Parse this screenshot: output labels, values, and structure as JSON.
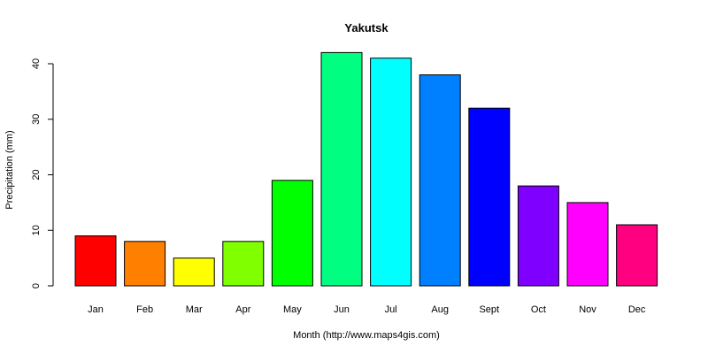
{
  "chart_data": {
    "type": "bar",
    "title": "Yakutsk",
    "xlabel": "Month (http://www.maps4gis.com)",
    "ylabel": "Precipitation (mm)",
    "categories": [
      "Jan",
      "Feb",
      "Mar",
      "Apr",
      "May",
      "Jun",
      "Jul",
      "Aug",
      "Sept",
      "Oct",
      "Nov",
      "Dec"
    ],
    "values": [
      9,
      8,
      5,
      8,
      19,
      42,
      41,
      38,
      32,
      18,
      15,
      11
    ],
    "colors": [
      "#FF0000",
      "#FF8000",
      "#FFFF00",
      "#80FF00",
      "#00FF00",
      "#00FF80",
      "#00FFFF",
      "#0080FF",
      "#0000FF",
      "#8000FF",
      "#FF00FF",
      "#FF0080"
    ],
    "ylim": [
      0,
      40
    ],
    "yticks": [
      0,
      10,
      20,
      30,
      40
    ],
    "grid": false,
    "legend": "none"
  }
}
